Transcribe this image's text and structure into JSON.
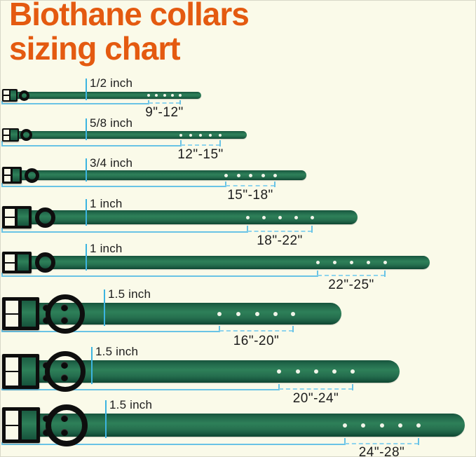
{
  "title": {
    "line1": "Biothane collars",
    "line2": "sizing chart"
  },
  "colors": {
    "background": "#fafae9",
    "title_orange": "#e45a10",
    "strap_green": "#26704f",
    "buckle_black": "#0d0d0d",
    "measure_blue": "#69c3e5",
    "measure_dash_blue": "#8ed4ed",
    "width_tick_cyan": "#3cb4e0",
    "label_text": "#1c1c1c"
  },
  "rows": [
    {
      "width_label": "1/2 inch",
      "size_range": "9\"-12\""
    },
    {
      "width_label": "5/8 inch",
      "size_range": "12\"-15\""
    },
    {
      "width_label": "3/4 inch",
      "size_range": "15\"-18\""
    },
    {
      "width_label": "1 inch",
      "size_range": "18\"-22\""
    },
    {
      "width_label": "1 inch",
      "size_range": "22\"-25\""
    },
    {
      "width_label": "1.5 inch",
      "size_range": "16\"-20\""
    },
    {
      "width_label": "1.5 inch",
      "size_range": "20\"-24\""
    },
    {
      "width_label": "1.5 inch",
      "size_range": "24\"-28\""
    }
  ]
}
